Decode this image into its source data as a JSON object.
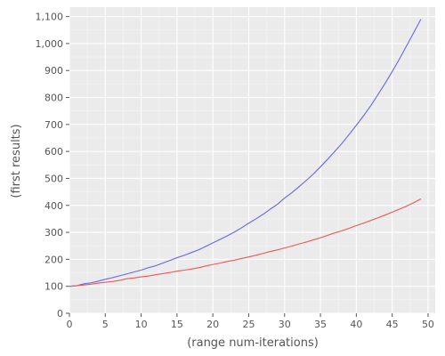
{
  "chart_data": {
    "type": "line",
    "xlabel": "(range num-iterations)",
    "ylabel": "(first results)",
    "xlim": [
      0,
      51
    ],
    "ylim": [
      0,
      1135
    ],
    "xticks": [
      0,
      5,
      10,
      15,
      20,
      25,
      30,
      35,
      40,
      45,
      50
    ],
    "xtick_labels": [
      "0",
      "5",
      "10",
      "15",
      "20",
      "25",
      "30",
      "35",
      "40",
      "45",
      "50"
    ],
    "yticks": [
      0,
      100,
      200,
      300,
      400,
      500,
      600,
      700,
      800,
      900,
      1000,
      1100
    ],
    "ytick_labels": [
      "0",
      "100",
      "200",
      "300",
      "400",
      "500",
      "600",
      "700",
      "800",
      "900",
      "1,000",
      "1,100"
    ],
    "grid": true,
    "background": "#ebebeb",
    "x": [
      0,
      1,
      2,
      3,
      4,
      5,
      6,
      7,
      8,
      9,
      10,
      11,
      12,
      13,
      14,
      15,
      16,
      17,
      18,
      19,
      20,
      21,
      22,
      23,
      24,
      25,
      26,
      27,
      28,
      29,
      30,
      31,
      32,
      33,
      34,
      35,
      36,
      37,
      38,
      39,
      40,
      41,
      42,
      43,
      44,
      45,
      46,
      47,
      48,
      49
    ],
    "series": [
      {
        "color": "#6666ee",
        "values": [
          100,
          102,
          109,
          113,
          119,
          126,
          132,
          139,
          146,
          153,
          160,
          169,
          176,
          186,
          196,
          206,
          215,
          225,
          235,
          248,
          261,
          274,
          287,
          301,
          317,
          334,
          350,
          367,
          386,
          404,
          427,
          447,
          469,
          492,
          516,
          543,
          571,
          600,
          630,
          663,
          697,
          732,
          769,
          810,
          852,
          896,
          942,
          991,
          1040,
          1090
        ]
      },
      {
        "color": "#f05555",
        "values": [
          100,
          102,
          105,
          108,
          112,
          115,
          118,
          122,
          128,
          131,
          135,
          138,
          143,
          147,
          151,
          156,
          160,
          164,
          169,
          175,
          181,
          186,
          192,
          197,
          203,
          209,
          215,
          222,
          229,
          235,
          242,
          249,
          257,
          264,
          272,
          280,
          289,
          298,
          306,
          315,
          325,
          334,
          344,
          354,
          364,
          375,
          386,
          397,
          410,
          424
        ]
      }
    ]
  }
}
